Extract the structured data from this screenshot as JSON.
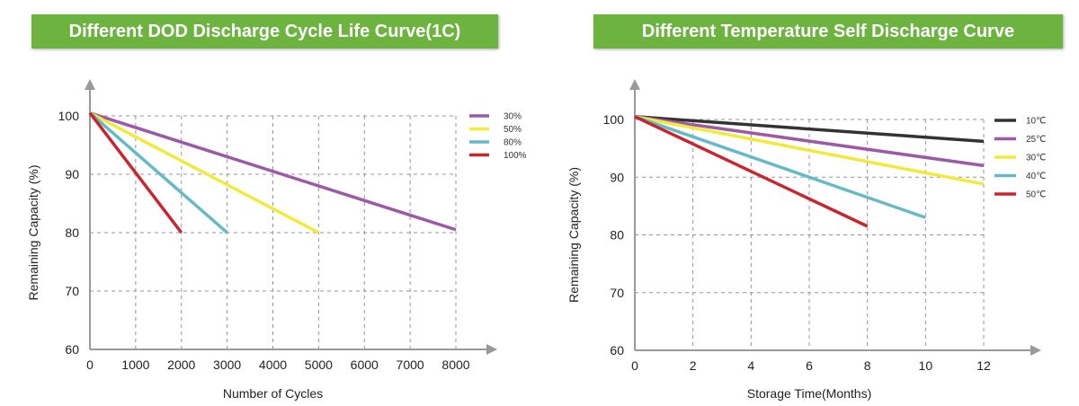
{
  "chart_data": [
    {
      "type": "line",
      "title": "Different DOD Discharge Cycle Life Curve(1C)",
      "xlabel": "Number of Cycles",
      "ylabel": "Remaining Capacity (%)",
      "xlim": [
        0,
        8000
      ],
      "ylim": [
        60,
        100
      ],
      "xticks": [
        "0",
        "1000",
        "2000",
        "3000",
        "4000",
        "5000",
        "6000",
        "7000",
        "8000"
      ],
      "yticks": [
        "60",
        "70",
        "80",
        "90",
        "100"
      ],
      "grid": true,
      "legend_position": "top-right",
      "series": [
        {
          "name": "30%",
          "color": "#9b59a6",
          "x": [
            0,
            8000
          ],
          "y": [
            100.5,
            80.5
          ]
        },
        {
          "name": "50%",
          "color": "#f2ea3a",
          "x": [
            0,
            5000
          ],
          "y": [
            100.5,
            80
          ]
        },
        {
          "name": "80%",
          "color": "#66b9c7",
          "x": [
            0,
            3000
          ],
          "y": [
            100.5,
            80
          ]
        },
        {
          "name": "100%",
          "color": "#c8262f",
          "x": [
            0,
            2000
          ],
          "y": [
            100.5,
            80
          ]
        }
      ]
    },
    {
      "type": "line",
      "title": "Different Temperature Self Discharge Curve",
      "xlabel": "Storage Time(Months)",
      "ylabel": "Remaining Capacity (%)",
      "xlim": [
        0,
        12
      ],
      "ylim": [
        60,
        100
      ],
      "xticks": [
        "0",
        "2",
        "4",
        "6",
        "8",
        "10",
        "12"
      ],
      "yticks": [
        "60",
        "70",
        "80",
        "90",
        "100"
      ],
      "grid": true,
      "legend_position": "top-right",
      "series": [
        {
          "name": "10℃",
          "color": "#333333",
          "x": [
            0,
            12
          ],
          "y": [
            100.5,
            96.2
          ]
        },
        {
          "name": "25℃",
          "color": "#9b59a6",
          "x": [
            0,
            12
          ],
          "y": [
            100.5,
            92
          ]
        },
        {
          "name": "30℃",
          "color": "#f2ea3a",
          "x": [
            0,
            12
          ],
          "y": [
            100.5,
            88.8
          ]
        },
        {
          "name": "40℃",
          "color": "#66b9c7",
          "x": [
            0,
            10
          ],
          "y": [
            100.5,
            83
          ]
        },
        {
          "name": "50℃",
          "color": "#c8262f",
          "x": [
            0,
            8
          ],
          "y": [
            100.5,
            81.5
          ]
        }
      ]
    }
  ]
}
